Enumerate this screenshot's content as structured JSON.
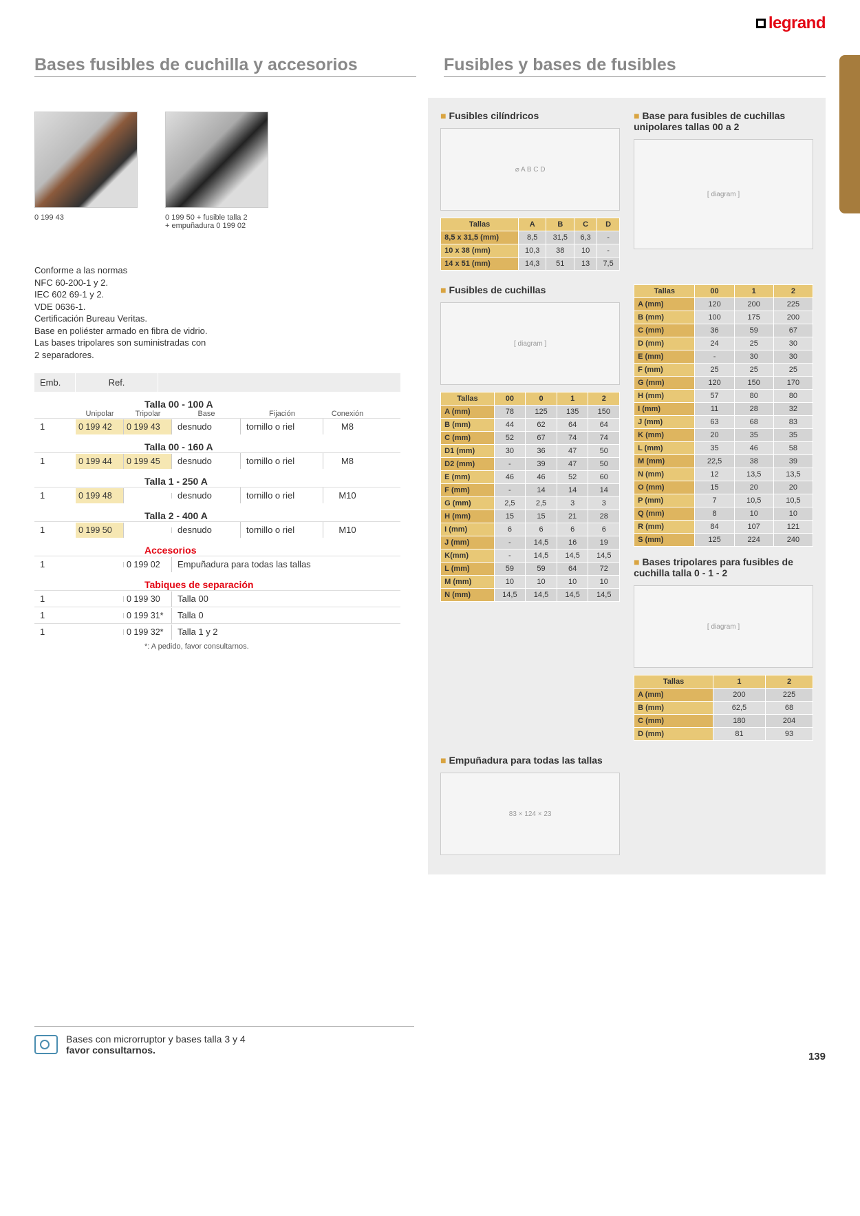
{
  "logo": {
    "brand": "legrand"
  },
  "page_number": "139",
  "headers": {
    "left": "Bases fusibles de cuchilla y accesorios",
    "right": "Fusibles y bases de fusibles"
  },
  "products": [
    {
      "ref": "0 199 43",
      "img_class": "img-ph"
    },
    {
      "ref": "0 199 50 + fusible talla 2\n+ empuñadura 0 199 02",
      "img_class": "img-ph2"
    }
  ],
  "norms": [
    "Conforme a las normas",
    "NFC 60-200-1 y 2.",
    "IEC 602 69-1 y 2.",
    "VDE 0636-1.",
    "Certificación Bureau Veritas.",
    "Base en poliéster armado en fibra de vidrio.",
    "Las bases tripolares son suministradas con",
    "2 separadores."
  ],
  "left_table": {
    "head": {
      "emb": "Emb.",
      "ref": "Ref."
    },
    "subhead": {
      "unipolar": "Unipolar",
      "tripolar": "Tripolar",
      "base": "Base",
      "fijacion": "Fijación",
      "conexion": "Conexión"
    },
    "groups": [
      {
        "title": "Talla 00 - 100 A",
        "rows": [
          {
            "emb": "1",
            "u": "0 199 42",
            "t": "0 199 43",
            "base": "desnudo",
            "fix": "tornillo o riel",
            "con": "M8"
          }
        ]
      },
      {
        "title": "Talla 00 - 160 A",
        "rows": [
          {
            "emb": "1",
            "u": "0 199 44",
            "t": "0 199 45",
            "base": "desnudo",
            "fix": "tornillo o riel",
            "con": "M8"
          }
        ]
      },
      {
        "title": "Talla 1 - 250 A",
        "rows": [
          {
            "emb": "1",
            "u": "0 199 48",
            "t": "",
            "base": "desnudo",
            "fix": "tornillo o riel",
            "con": "M10"
          }
        ]
      },
      {
        "title": "Talla 2 - 400 A",
        "rows": [
          {
            "emb": "1",
            "u": "0 199 50",
            "t": "",
            "base": "desnudo",
            "fix": "tornillo o riel",
            "con": "M10"
          }
        ]
      }
    ],
    "accesorios": {
      "title": "Accesorios",
      "rows": [
        {
          "emb": "1",
          "ref": "0 199 02",
          "desc": "Empuñadura para todas las tallas"
        }
      ]
    },
    "tabiques": {
      "title": "Tabiques de separación",
      "rows": [
        {
          "emb": "1",
          "ref": "0 199 30",
          "desc": "Talla 00"
        },
        {
          "emb": "1",
          "ref": "0 199 31*",
          "desc": "Talla 0"
        },
        {
          "emb": "1",
          "ref": "0 199 32*",
          "desc": "Talla 1 y 2"
        }
      ],
      "footnote": "*: A pedido, favor consultarnos."
    }
  },
  "right": {
    "cilindricos": {
      "title": "Fusibles cilíndricos",
      "cols": [
        "Tallas",
        "A",
        "B",
        "C",
        "D"
      ],
      "rows": [
        [
          "8,5 x 31,5 (mm)",
          "8,5",
          "31,5",
          "6,3",
          "-"
        ],
        [
          "10 x 38 (mm)",
          "10,3",
          "38",
          "10",
          "-"
        ],
        [
          "14 x 51 (mm)",
          "14,3",
          "51",
          "13",
          "7,5"
        ]
      ]
    },
    "base_unipolar": {
      "title": "Base para fusibles de cuchillas unipolares tallas 00 a 2"
    },
    "cuchillas": {
      "title": "Fusibles de cuchillas",
      "cols": [
        "Tallas",
        "00",
        "0",
        "1",
        "2"
      ],
      "rows": [
        [
          "A (mm)",
          "78",
          "125",
          "135",
          "150"
        ],
        [
          "B (mm)",
          "44",
          "62",
          "64",
          "64"
        ],
        [
          "C (mm)",
          "52",
          "67",
          "74",
          "74"
        ],
        [
          "D1 (mm)",
          "30",
          "36",
          "47",
          "50"
        ],
        [
          "D2 (mm)",
          "-",
          "39",
          "47",
          "50"
        ],
        [
          "E (mm)",
          "46",
          "46",
          "52",
          "60"
        ],
        [
          "F (mm)",
          "-",
          "14",
          "14",
          "14"
        ],
        [
          "G (mm)",
          "2,5",
          "2,5",
          "3",
          "3"
        ],
        [
          "H (mm)",
          "15",
          "15",
          "21",
          "28"
        ],
        [
          "I (mm)",
          "6",
          "6",
          "6",
          "6"
        ],
        [
          "J (mm)",
          "-",
          "14,5",
          "16",
          "19"
        ],
        [
          "K(mm)",
          "-",
          "14,5",
          "14,5",
          "14,5"
        ],
        [
          "L (mm)",
          "59",
          "59",
          "64",
          "72"
        ],
        [
          "M (mm)",
          "10",
          "10",
          "10",
          "10"
        ],
        [
          "N (mm)",
          "14,5",
          "14,5",
          "14,5",
          "14,5"
        ]
      ]
    },
    "tallas_right": {
      "cols": [
        "Tallas",
        "00",
        "1",
        "2"
      ],
      "rows": [
        [
          "A (mm)",
          "120",
          "200",
          "225"
        ],
        [
          "B (mm)",
          "100",
          "175",
          "200"
        ],
        [
          "C (mm)",
          "36",
          "59",
          "67"
        ],
        [
          "D (mm)",
          "24",
          "25",
          "30"
        ],
        [
          "E (mm)",
          "-",
          "30",
          "30"
        ],
        [
          "F (mm)",
          "25",
          "25",
          "25"
        ],
        [
          "G (mm)",
          "120",
          "150",
          "170"
        ],
        [
          "H (mm)",
          "57",
          "80",
          "80"
        ],
        [
          "I (mm)",
          "11",
          "28",
          "32"
        ],
        [
          "J (mm)",
          "63",
          "68",
          "83"
        ],
        [
          "K (mm)",
          "20",
          "35",
          "35"
        ],
        [
          "L (mm)",
          "35",
          "46",
          "58"
        ],
        [
          "M (mm)",
          "22,5",
          "38",
          "39"
        ],
        [
          "N (mm)",
          "12",
          "13,5",
          "13,5"
        ],
        [
          "O (mm)",
          "15",
          "20",
          "20"
        ],
        [
          "P (mm)",
          "7",
          "10,5",
          "10,5"
        ],
        [
          "Q (mm)",
          "8",
          "10",
          "10"
        ],
        [
          "R (mm)",
          "84",
          "107",
          "121"
        ],
        [
          "S (mm)",
          "125",
          "224",
          "240"
        ]
      ]
    },
    "tripolares": {
      "title": "Bases tripolares  para fusibles de cuchilla talla 0 - 1 - 2",
      "cols": [
        "Tallas",
        "1",
        "2"
      ],
      "rows": [
        [
          "A (mm)",
          "200",
          "225"
        ],
        [
          "B (mm)",
          "62,5",
          "68"
        ],
        [
          "C (mm)",
          "180",
          "204"
        ],
        [
          "D (mm)",
          "81",
          "93"
        ]
      ]
    },
    "empunadura": {
      "title": "Empuñadura para todas las tallas",
      "dims": {
        "w": "83",
        "h": "124",
        "d": "23"
      }
    }
  },
  "footer": {
    "line1": "Bases con microrruptor y bases talla 3 y 4",
    "line2": "favor consultarnos."
  },
  "colors": {
    "accent_header": "#e8c876",
    "highlight": "#f6e7b3",
    "red": "#e30613",
    "gray_bg": "#ededed",
    "side_tab": "#a67c3d"
  }
}
